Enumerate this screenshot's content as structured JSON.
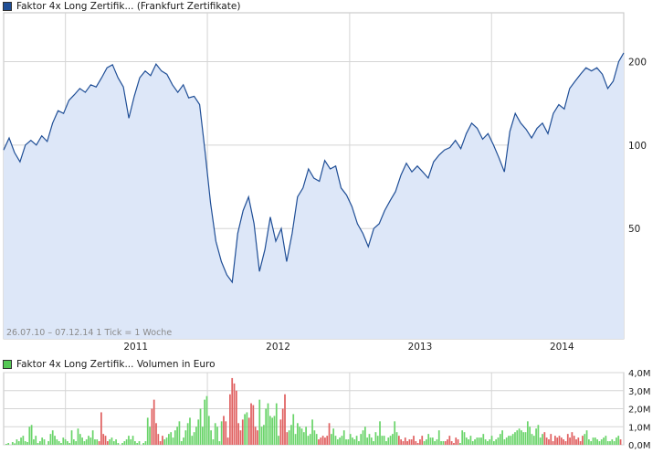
{
  "price_legend": {
    "label": "Faktor 4x Long Zertifik... (Frankfurt Zertifikate)",
    "color": "#1f4e96"
  },
  "volume_legend": {
    "label": "Faktor 4x Long Zertifik... Volumen in Euro",
    "color": "#55c855"
  },
  "footnote": "26.07.10 – 07.12.14   1 Tick = 1 Woche",
  "colors": {
    "line": "#1f4e96",
    "area": "#dde7f8",
    "grid": "#d5d5d5",
    "vol_up": "#6ad46a",
    "vol_down": "#e06060"
  },
  "chart_data": [
    {
      "type": "area",
      "subtitle": "Frankfurt Zertifikate",
      "x_ticks": [
        "2011",
        "2012",
        "2013",
        "2014"
      ],
      "y_ticks": [
        "50",
        "100",
        "200"
      ],
      "y_scale": "log",
      "x_range": [
        "2010-07-26",
        "2014-12-07"
      ],
      "ylim": [
        20,
        300
      ],
      "grid": true,
      "series": [
        {
          "name": "Faktor 4x Long Zertifik...",
          "points": [
            [
              "2010-07-26",
              96
            ],
            [
              "2010-08-09",
              106
            ],
            [
              "2010-08-23",
              94
            ],
            [
              "2010-09-06",
              87
            ],
            [
              "2010-09-20",
              100
            ],
            [
              "2010-10-04",
              104
            ],
            [
              "2010-10-18",
              100
            ],
            [
              "2010-11-01",
              108
            ],
            [
              "2010-11-15",
              103
            ],
            [
              "2010-11-29",
              120
            ],
            [
              "2010-12-13",
              133
            ],
            [
              "2010-12-27",
              130
            ],
            [
              "2011-01-10",
              145
            ],
            [
              "2011-01-24",
              152
            ],
            [
              "2011-02-07",
              160
            ],
            [
              "2011-02-21",
              155
            ],
            [
              "2011-03-07",
              165
            ],
            [
              "2011-03-21",
              162
            ],
            [
              "2011-04-04",
              175
            ],
            [
              "2011-04-18",
              190
            ],
            [
              "2011-05-02",
              195
            ],
            [
              "2011-05-16",
              175
            ],
            [
              "2011-05-30",
              162
            ],
            [
              "2011-06-13",
              125
            ],
            [
              "2011-06-27",
              150
            ],
            [
              "2011-07-11",
              175
            ],
            [
              "2011-07-25",
              185
            ],
            [
              "2011-08-08",
              178
            ],
            [
              "2011-08-22",
              196
            ],
            [
              "2011-09-05",
              185
            ],
            [
              "2011-09-19",
              180
            ],
            [
              "2011-10-03",
              165
            ],
            [
              "2011-10-17",
              155
            ],
            [
              "2011-10-31",
              165
            ],
            [
              "2011-11-14",
              148
            ],
            [
              "2011-11-28",
              150
            ],
            [
              "2011-12-12",
              140
            ],
            [
              "2011-12-26",
              95
            ],
            [
              "2012-01-09",
              62
            ],
            [
              "2012-01-23",
              45
            ],
            [
              "2012-02-06",
              38
            ],
            [
              "2012-02-20",
              34
            ],
            [
              "2012-03-05",
              32
            ],
            [
              "2012-03-19",
              48
            ],
            [
              "2012-04-02",
              58
            ],
            [
              "2012-04-16",
              65
            ],
            [
              "2012-04-30",
              52
            ],
            [
              "2012-05-14",
              35
            ],
            [
              "2012-05-28",
              42
            ],
            [
              "2012-06-11",
              55
            ],
            [
              "2012-06-25",
              45
            ],
            [
              "2012-07-09",
              50
            ],
            [
              "2012-07-23",
              38
            ],
            [
              "2012-08-06",
              48
            ],
            [
              "2012-08-20",
              65
            ],
            [
              "2012-09-03",
              70
            ],
            [
              "2012-09-17",
              82
            ],
            [
              "2012-10-01",
              76
            ],
            [
              "2012-10-15",
              74
            ],
            [
              "2012-10-29",
              88
            ],
            [
              "2012-11-12",
              82
            ],
            [
              "2012-11-26",
              84
            ],
            [
              "2012-12-10",
              70
            ],
            [
              "2012-12-24",
              66
            ],
            [
              "2013-01-07",
              60
            ],
            [
              "2013-01-21",
              52
            ],
            [
              "2013-02-04",
              48
            ],
            [
              "2013-02-18",
              43
            ],
            [
              "2013-03-04",
              50
            ],
            [
              "2013-03-18",
              52
            ],
            [
              "2013-04-01",
              58
            ],
            [
              "2013-04-15",
              63
            ],
            [
              "2013-04-29",
              68
            ],
            [
              "2013-05-13",
              78
            ],
            [
              "2013-05-27",
              86
            ],
            [
              "2013-06-10",
              80
            ],
            [
              "2013-06-24",
              84
            ],
            [
              "2013-07-08",
              80
            ],
            [
              "2013-07-22",
              76
            ],
            [
              "2013-08-05",
              87
            ],
            [
              "2013-08-19",
              92
            ],
            [
              "2013-09-02",
              96
            ],
            [
              "2013-09-16",
              98
            ],
            [
              "2013-09-30",
              104
            ],
            [
              "2013-10-14",
              97
            ],
            [
              "2013-10-28",
              110
            ],
            [
              "2013-11-11",
              120
            ],
            [
              "2013-11-25",
              115
            ],
            [
              "2013-12-09",
              105
            ],
            [
              "2013-12-23",
              110
            ],
            [
              "2014-01-06",
              100
            ],
            [
              "2014-01-20",
              90
            ],
            [
              "2014-02-03",
              80
            ],
            [
              "2014-02-17",
              112
            ],
            [
              "2014-03-03",
              130
            ],
            [
              "2014-03-17",
              120
            ],
            [
              "2014-03-31",
              114
            ],
            [
              "2014-04-14",
              106
            ],
            [
              "2014-04-28",
              115
            ],
            [
              "2014-05-12",
              120
            ],
            [
              "2014-05-26",
              110
            ],
            [
              "2014-06-09",
              130
            ],
            [
              "2014-06-23",
              140
            ],
            [
              "2014-07-07",
              135
            ],
            [
              "2014-07-21",
              160
            ],
            [
              "2014-08-04",
              170
            ],
            [
              "2014-08-18",
              180
            ],
            [
              "2014-09-01",
              190
            ],
            [
              "2014-09-15",
              185
            ],
            [
              "2014-09-29",
              190
            ],
            [
              "2014-10-13",
              180
            ],
            [
              "2014-10-27",
              160
            ],
            [
              "2014-11-10",
              170
            ],
            [
              "2014-11-24",
              200
            ],
            [
              "2014-12-07",
              215
            ]
          ]
        }
      ]
    },
    {
      "type": "bar",
      "subtitle": "Volumen in Euro",
      "y_ticks": [
        "0,0M",
        "1,0M",
        "2,0M",
        "3,0M",
        "4,0M"
      ],
      "ylim": [
        0,
        4.0
      ],
      "unit": "M Euro",
      "grid": true,
      "values": [
        0.05,
        0.1,
        0.0,
        0.15,
        0.08,
        0.3,
        0.2,
        0.4,
        0.5,
        0.2,
        0.15,
        1.0,
        1.1,
        0.3,
        0.5,
        0.1,
        0.2,
        0.4,
        0.3,
        0.0,
        0.2,
        0.6,
        0.8,
        0.5,
        0.3,
        0.2,
        0.1,
        0.4,
        0.3,
        0.2,
        0.1,
        0.8,
        0.3,
        0.2,
        0.9,
        0.6,
        0.4,
        0.2,
        0.3,
        0.5,
        0.4,
        0.8,
        0.3,
        0.3,
        0.2,
        1.8,
        0.6,
        0.5,
        0.2,
        0.3,
        0.4,
        0.2,
        0.3,
        0.1,
        0.0,
        0.1,
        0.2,
        0.3,
        0.5,
        0.3,
        0.5,
        0.2,
        0.1,
        0.2,
        0.0,
        0.1,
        0.2,
        1.5,
        1.0,
        2.0,
        2.5,
        1.2,
        0.6,
        0.2,
        0.5,
        0.3,
        0.4,
        0.6,
        0.7,
        0.4,
        0.8,
        1.0,
        1.3,
        0.2,
        0.4,
        0.8,
        1.2,
        1.5,
        0.5,
        0.7,
        1.0,
        1.4,
        2.0,
        1.0,
        2.5,
        2.7,
        1.6,
        0.8,
        0.3,
        1.2,
        1.0,
        0.2,
        1.3,
        1.6,
        1.3,
        0.4,
        2.8,
        3.7,
        3.4,
        3.0,
        1.2,
        0.8,
        1.4,
        1.7,
        1.8,
        1.5,
        2.3,
        2.2,
        1.0,
        0.8,
        2.5,
        1.0,
        1.1,
        2.0,
        2.3,
        1.6,
        1.5,
        1.6,
        2.3,
        0.5,
        1.4,
        2.0,
        2.8,
        0.7,
        0.8,
        1.1,
        1.7,
        0.6,
        1.2,
        1.0,
        0.9,
        0.7,
        1.0,
        0.5,
        0.6,
        1.4,
        0.8,
        0.6,
        0.3,
        0.4,
        0.5,
        0.4,
        0.5,
        1.2,
        0.6,
        0.9,
        0.5,
        0.3,
        0.4,
        0.5,
        0.8,
        0.3,
        0.3,
        0.6,
        0.4,
        0.3,
        0.5,
        0.2,
        0.6,
        0.8,
        1.0,
        0.4,
        0.6,
        0.4,
        0.2,
        0.7,
        0.5,
        1.3,
        0.5,
        0.5,
        0.2,
        0.4,
        0.5,
        0.6,
        1.3,
        0.7,
        0.5,
        0.3,
        0.2,
        0.4,
        0.2,
        0.3,
        0.3,
        0.5,
        0.2,
        0.1,
        0.3,
        0.5,
        0.2,
        0.3,
        0.6,
        0.4,
        0.4,
        0.2,
        0.3,
        0.8,
        0.2,
        0.2,
        0.2,
        0.3,
        0.5,
        0.2,
        0.1,
        0.4,
        0.3,
        0.1,
        0.8,
        0.7,
        0.4,
        0.3,
        0.5,
        0.2,
        0.3,
        0.4,
        0.4,
        0.4,
        0.6,
        0.3,
        0.2,
        0.3,
        0.5,
        0.2,
        0.3,
        0.4,
        0.6,
        0.8,
        0.3,
        0.4,
        0.5,
        0.5,
        0.6,
        0.7,
        0.8,
        0.9,
        0.8,
        0.7,
        0.7,
        1.3,
        1.0,
        0.6,
        0.5,
        0.9,
        1.1,
        0.4,
        0.6,
        0.7,
        0.4,
        0.3,
        0.6,
        0.2,
        0.5,
        0.4,
        0.5,
        0.4,
        0.3,
        0.2,
        0.6,
        0.4,
        0.7,
        0.5,
        0.3,
        0.4,
        0.2,
        0.5,
        0.6,
        0.8,
        0.3,
        0.2,
        0.4,
        0.4,
        0.3,
        0.2,
        0.3,
        0.4,
        0.5,
        0.2,
        0.2,
        0.3,
        0.2,
        0.4,
        0.5,
        0.3
      ],
      "directions": "ggggggggggggggggggggggggggggggggggggggggggggrrrrrggggggggggggggggggggrrrrrrggggggggggggggggggggggggggggrrrrrrrrrrggrrrrrggggggggggrrrrggggggggggggggrrrrrrggggggggggggggggggggggggggggggggrrrrrrrrrrrrggggggggggrrrrrrrggggggggggggggggggggggggggggggggggggggggrrrrrrrrrrrrrrrrrrrgggggggggggggggggrrrrrrrggggggggggggg"
    }
  ]
}
